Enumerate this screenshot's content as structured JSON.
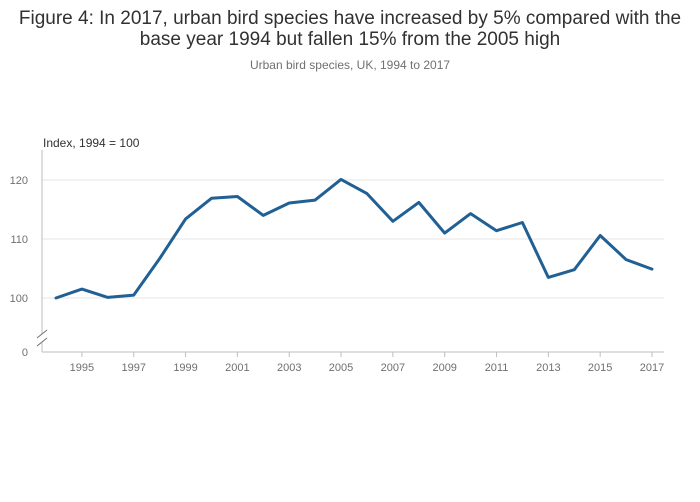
{
  "chart_data": {
    "type": "line",
    "title": "Figure 4: In 2017, urban bird species have increased by 5% compared with the base year 1994 but fallen 15% from the 2005 high",
    "subtitle": "Urban bird species, UK, 1994 to 2017",
    "ylabel": "Index, 1994 = 100",
    "xlabel": "",
    "x": [
      1994,
      1995,
      1996,
      1997,
      1998,
      1999,
      2000,
      2001,
      2002,
      2003,
      2004,
      2005,
      2006,
      2007,
      2008,
      2009,
      2010,
      2011,
      2012,
      2013,
      2014,
      2015,
      2016,
      2017
    ],
    "series": [
      {
        "color": "#206095",
        "values": [
          100,
          101.5,
          100.1,
          100.5,
          106.7,
          113.4,
          116.9,
          117.2,
          114.0,
          116.1,
          116.6,
          120.1,
          117.7,
          113.0,
          116.2,
          111.0,
          114.3,
          111.4,
          112.8,
          103.5,
          104.8,
          110.6,
          106.5,
          104.9
        ]
      }
    ],
    "xticks": [
      "1995",
      "1997",
      "1999",
      "2001",
      "2003",
      "2005",
      "2007",
      "2009",
      "2011",
      "2013",
      "2015",
      "2017"
    ],
    "yticks": [
      "0",
      "100",
      "110",
      "120"
    ],
    "ylim": [
      95,
      125
    ],
    "y_axis_break": true,
    "grid": true
  }
}
